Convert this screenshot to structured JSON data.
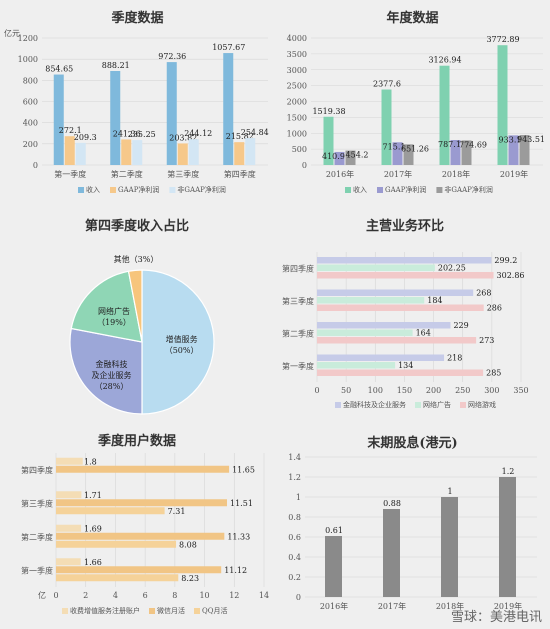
{
  "watermark": "雪球：美港电讯",
  "chart_data": [
    {
      "id": "quarterly",
      "type": "bar",
      "title": "季度数据",
      "ylabel": "亿元",
      "ylim": [
        0,
        1200
      ],
      "yticks": [
        0,
        200,
        400,
        600,
        800,
        1000,
        1200
      ],
      "categories": [
        "第一季度",
        "第二季度",
        "第三季度",
        "第四季度"
      ],
      "series": [
        {
          "name": "收入",
          "color": "#7fb9dc",
          "values": [
            854.65,
            888.21,
            972.36,
            1057.67
          ]
        },
        {
          "name": "GAAP净利润",
          "color": "#f6c88a",
          "values": [
            272.1,
            241.36,
            203.82,
            215.82
          ]
        },
        {
          "name": "非GAAP净利润",
          "color": "#d3e6f4",
          "values": [
            209.3,
            235.25,
            244.12,
            254.84
          ]
        }
      ]
    },
    {
      "id": "annual",
      "type": "bar",
      "title": "年度数据",
      "ylim": [
        0,
        4000
      ],
      "yticks": [
        0,
        500,
        1000,
        1500,
        2000,
        2500,
        3000,
        3500,
        4000
      ],
      "categories": [
        "2016年",
        "2017年",
        "2018年",
        "2019年"
      ],
      "series": [
        {
          "name": "收入",
          "color": "#7fd1b0",
          "values": [
            1519.38,
            2377.6,
            3126.94,
            3772.89
          ]
        },
        {
          "name": "GAAP净利润",
          "color": "#9a9ad0",
          "values": [
            410.95,
            715.1,
            787.19,
            933.1
          ]
        },
        {
          "name": "非GAAP净利润",
          "color": "#9b9b9b",
          "values": [
            454.2,
            651.26,
            774.69,
            943.51
          ]
        }
      ]
    },
    {
      "id": "share",
      "type": "pie",
      "title": "第四季度收入占比",
      "slices": [
        {
          "label": "增值服务",
          "pct": "（50%）",
          "value": 50,
          "color": "#b8dcf0"
        },
        {
          "label": "金融科技及企业服务",
          "pct": "（28%）",
          "value": 28,
          "color": "#9ca7d8"
        },
        {
          "label": "网络广告",
          "pct": "（19%）",
          "value": 19,
          "color": "#8fd6b5"
        },
        {
          "label": "其他",
          "pct": "（3%）",
          "value": 3,
          "color": "#f7c57c"
        }
      ]
    },
    {
      "id": "segments",
      "type": "bar",
      "orientation": "horizontal",
      "title": "主营业务环比",
      "xlim": [
        0,
        350
      ],
      "xticks": [
        0,
        50,
        100,
        150,
        200,
        250,
        300,
        350
      ],
      "categories": [
        "第四季度",
        "第三季度",
        "第二季度",
        "第一季度"
      ],
      "series": [
        {
          "name": "金融科技及企业服务",
          "color": "#c6cbe8",
          "values": [
            299.2,
            268,
            229,
            218
          ]
        },
        {
          "name": "网络广告",
          "color": "#c9ecdb",
          "values": [
            202.25,
            184,
            164,
            134
          ]
        },
        {
          "name": "网络游戏",
          "color": "#f2c9c9",
          "values": [
            302.86,
            286,
            273,
            285
          ]
        }
      ]
    },
    {
      "id": "users",
      "type": "bar",
      "orientation": "horizontal",
      "title": "季度用户数据",
      "xlabel": "亿",
      "xlim": [
        0,
        14
      ],
      "xticks": [
        0,
        2,
        4,
        6,
        8,
        10,
        12,
        14
      ],
      "categories": [
        "第四季度",
        "第三季度",
        "第二季度",
        "第一季度"
      ],
      "series": [
        {
          "name": "收费增值服务注册账户",
          "color": "#f4ddb5",
          "values": [
            1.8,
            1.71,
            1.69,
            1.66
          ]
        },
        {
          "name": "微信月活",
          "color": "#f1c585",
          "values": [
            11.65,
            11.51,
            11.33,
            11.12
          ]
        },
        {
          "name": "QQ月活",
          "color": "#f5d299",
          "values": [
            null,
            7.31,
            8.08,
            8.23
          ]
        }
      ]
    },
    {
      "id": "dividend",
      "type": "bar",
      "title": "末期股息(港元)",
      "ylim": [
        0,
        1.4
      ],
      "yticks": [
        0,
        0.2,
        0.4,
        0.6,
        0.8,
        1,
        1.2,
        1.4
      ],
      "categories": [
        "2016年",
        "2017年",
        "2018年",
        "2019年"
      ],
      "series": [
        {
          "name": "末期股息",
          "color": "#8a8a8a",
          "values": [
            0.61,
            0.88,
            1,
            1.2
          ]
        }
      ]
    }
  ]
}
